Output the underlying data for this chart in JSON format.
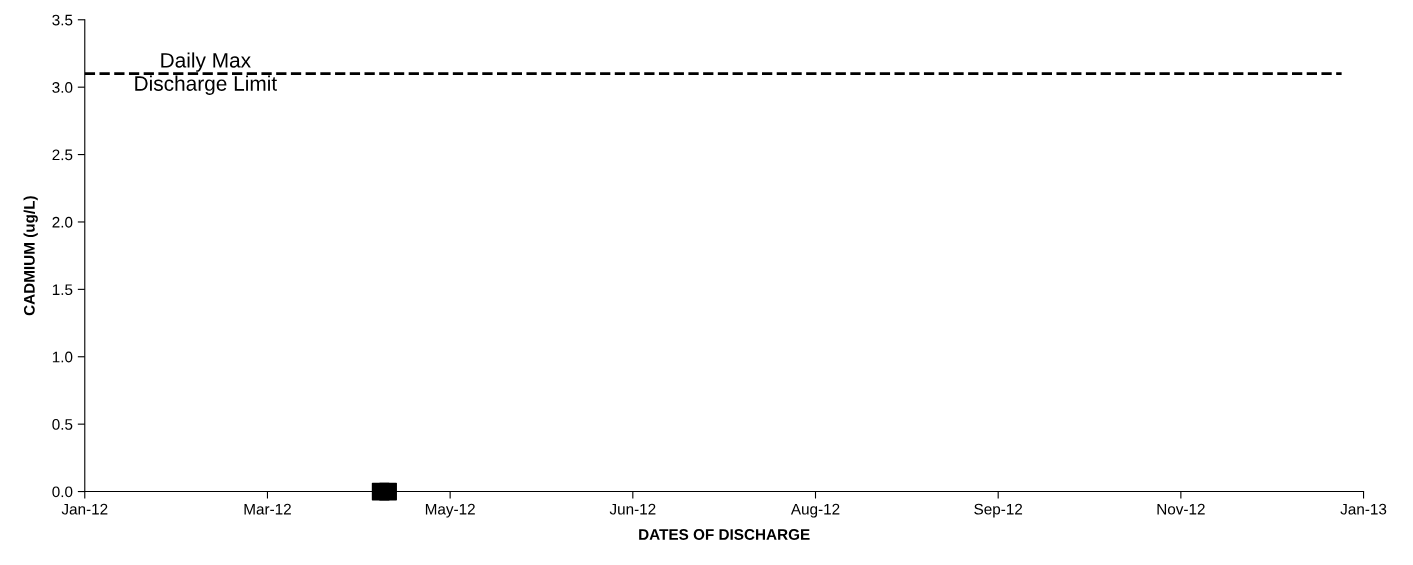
{
  "chart_data": {
    "type": "scatter",
    "xlabel": "DATES OF DISCHARGE",
    "ylabel": "CADMIUM (ug/L)",
    "series": [
      {
        "type": "line",
        "color": "#000000",
        "x": [
          "2012-01-23",
          "2013-01-01"
        ],
        "values": [
          3.1,
          3.1
        ],
        "line_style": "dashed",
        "marker": "none"
      },
      {
        "type": "scatter",
        "color": "#000000",
        "x": [
          "2012-04-13",
          "2012-04-15"
        ],
        "values": [
          0,
          0
        ],
        "marker": "square"
      }
    ],
    "annotations": [
      {
        "text": "Daily Max\nDischarge Limit",
        "x": "2012-02-25",
        "y": 3.1
      }
    ],
    "xlim": [
      "2012-01-23",
      "2013-01-07"
    ],
    "xticks": [
      {
        "value": "2012-01-23",
        "label": "Jan-12"
      },
      {
        "value": "2012-03-13",
        "label": "Mar-12"
      },
      {
        "value": "2012-05-02",
        "label": "May-12"
      },
      {
        "value": "2012-06-21",
        "label": "Jun-12"
      },
      {
        "value": "2012-08-10",
        "label": "Aug-12"
      },
      {
        "value": "2012-09-29",
        "label": "Sep-12"
      },
      {
        "value": "2012-11-18",
        "label": "Nov-12"
      },
      {
        "value": "2013-01-07",
        "label": "Jan-13"
      }
    ],
    "ylim": [
      0,
      3.5
    ],
    "yticks": [
      {
        "value": 0,
        "label": "0.0"
      },
      {
        "value": 0.5,
        "label": "0.5"
      },
      {
        "value": 1,
        "label": "1.0"
      },
      {
        "value": 1.5,
        "label": "1.5"
      },
      {
        "value": 2,
        "label": "2.0"
      },
      {
        "value": 2.5,
        "label": "2.5"
      },
      {
        "value": 3,
        "label": "3.0"
      },
      {
        "value": 3.5,
        "label": "3.5"
      }
    ],
    "grid": false
  }
}
